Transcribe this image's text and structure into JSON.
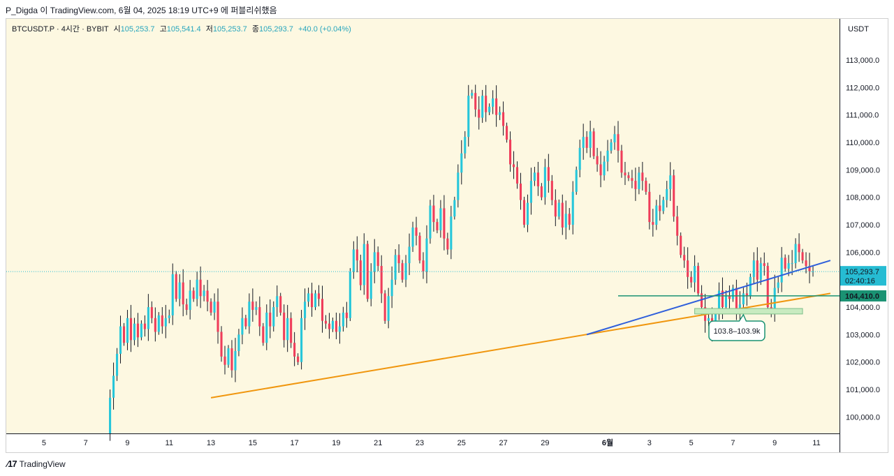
{
  "header": {
    "publish_line": "P_Digda 이 TradingView.com, 6월 04, 2025 18:19 UTC+9 에 퍼블리쉬했음"
  },
  "legend": {
    "symbol": "BTCUSDT.P · 4시간 · BYBIT",
    "open_label": "시",
    "open": "105,253.7",
    "high_label": "고",
    "high": "105,541.4",
    "low_label": "저",
    "low": "105,253.7",
    "close_label": "종",
    "close": "105,293.7",
    "change": "+40.0 (+0.04%)"
  },
  "footer": {
    "brand": "TradingView"
  },
  "colors": {
    "background": "#fdf8e1",
    "up": "#26c6da",
    "down": "#ef3d5a",
    "support_orange": "#f0960e",
    "trend_blue": "#2f5fdb",
    "level_green": "#1a9273",
    "zone_fill": "#c8ebc0",
    "price_tag": "#26bcd3"
  },
  "chart_data": {
    "type": "candlestick",
    "symbol": "BTCUSDT.P",
    "timeframe": "4시간",
    "exchange": "BYBIT",
    "currency": "USDT",
    "y_ticks": [
      100000,
      101000,
      102000,
      103000,
      104000,
      105000,
      106000,
      107000,
      108000,
      109000,
      110000,
      111000,
      112000,
      113000
    ],
    "y_tick_labels": [
      "100,000.0",
      "101,000.0",
      "102,000.0",
      "103,000.0",
      "104,000.0",
      "",
      "106,000.0",
      "107,000.0",
      "108,000.0",
      "109,000.0",
      "110,000.0",
      "111,000.0",
      "112,000.0",
      "113,000.0"
    ],
    "ylim": [
      99400,
      114500
    ],
    "x_start": "2025-05-04",
    "x_end": "2025-06-11",
    "x_ticks": [
      {
        "date": "2025-05-05",
        "label": "5"
      },
      {
        "date": "2025-05-07",
        "label": "7"
      },
      {
        "date": "2025-05-09",
        "label": "9"
      },
      {
        "date": "2025-05-11",
        "label": "11"
      },
      {
        "date": "2025-05-13",
        "label": "13"
      },
      {
        "date": "2025-05-15",
        "label": "15"
      },
      {
        "date": "2025-05-17",
        "label": "17"
      },
      {
        "date": "2025-05-19",
        "label": "19"
      },
      {
        "date": "2025-05-21",
        "label": "21"
      },
      {
        "date": "2025-05-23",
        "label": "23"
      },
      {
        "date": "2025-05-25",
        "label": "25"
      },
      {
        "date": "2025-05-27",
        "label": "27"
      },
      {
        "date": "2025-05-29",
        "label": "29"
      },
      {
        "date": "2025-06-01",
        "label": "6월"
      },
      {
        "date": "2025-06-03",
        "label": "3"
      },
      {
        "date": "2025-06-05",
        "label": "5"
      },
      {
        "date": "2025-06-07",
        "label": "7"
      },
      {
        "date": "2025-06-09",
        "label": "9"
      },
      {
        "date": "2025-06-11",
        "label": "11"
      }
    ],
    "first_candle_date": "2025-05-08",
    "candle_period_hours": 4,
    "candle_closes": [
      99400,
      100700,
      101500,
      102300,
      103300,
      102700,
      103600,
      102800,
      103400,
      102900,
      103400,
      103200,
      104000,
      103600,
      103100,
      103700,
      103300,
      103600,
      103700,
      105200,
      104300,
      104900,
      104100,
      103900,
      104600,
      104300,
      105000,
      104400,
      104600,
      104200,
      103800,
      104200,
      103100,
      102200,
      101900,
      102500,
      101700,
      102400,
      103000,
      103600,
      103300,
      104200,
      103900,
      104000,
      103300,
      102700,
      103800,
      103300,
      104000,
      104400,
      103800,
      102800,
      103600,
      102700,
      102200,
      102000,
      103600,
      104200,
      104500,
      104000,
      104500,
      104300,
      103500,
      103400,
      103200,
      103500,
      103100,
      103300,
      103800,
      103600,
      105300,
      106100,
      105700,
      104800,
      106300,
      104300,
      105300,
      106000,
      105500,
      104500,
      103500,
      104400,
      105000,
      105900,
      105600,
      105000,
      105600,
      106200,
      106900,
      106600,
      105700,
      105300,
      106500,
      107700,
      107100,
      106800,
      107600,
      106500,
      106100,
      107300,
      107900,
      108900,
      109600,
      110200,
      111700,
      111800,
      111200,
      110900,
      111700,
      111100,
      111300,
      111600,
      111000,
      111100,
      110600,
      110100,
      109200,
      109100,
      108500,
      107900,
      107000,
      107800,
      108600,
      108900,
      108400,
      108000,
      109100,
      108600,
      107900,
      107300,
      107800,
      106900,
      107400,
      107000,
      108200,
      109000,
      109800,
      110200,
      109800,
      110400,
      109500,
      109200,
      108800,
      109300,
      109700,
      110000,
      110300,
      109700,
      108900,
      108800,
      108700,
      108600,
      108300,
      108900,
      108600,
      108200,
      107100,
      107000,
      107700,
      107500,
      107900,
      108300,
      108800,
      107300,
      106600,
      105900,
      105700,
      105100,
      104900,
      105500,
      104500,
      104000,
      103500,
      103600,
      103100,
      103800,
      104600,
      104000,
      104400,
      104300,
      104700,
      103800,
      104100,
      104500,
      104400,
      105100,
      105700,
      105000,
      105600,
      105500,
      104000,
      103900,
      104700,
      104900,
      105800,
      105400,
      105600,
      105600,
      106300,
      106000,
      105700,
      105500,
      105300,
      105300
    ]
  },
  "drawings": {
    "orange_support": {
      "from": {
        "date": "2025-05-13T00:00",
        "price": 100700
      },
      "to": {
        "date": "2025-06-11T16:00",
        "price": 104500
      }
    },
    "blue_trend": {
      "from": {
        "date": "2025-05-31T00:00",
        "price": 103000
      },
      "to": {
        "date": "2025-06-11T16:00",
        "price": 105700
      }
    },
    "green_level": {
      "price": 104410,
      "start_date": "2025-06-01T12:00"
    },
    "zone": {
      "price_top": 103950,
      "price_bottom": 103750,
      "start_date": "2025-06-05T04:00",
      "end_date": "2025-06-10T08:00"
    },
    "zone_label": "103.8–103.9k",
    "current_price_label": "105,293.7",
    "countdown": "02:40:16",
    "level_label": "104,410.0"
  }
}
